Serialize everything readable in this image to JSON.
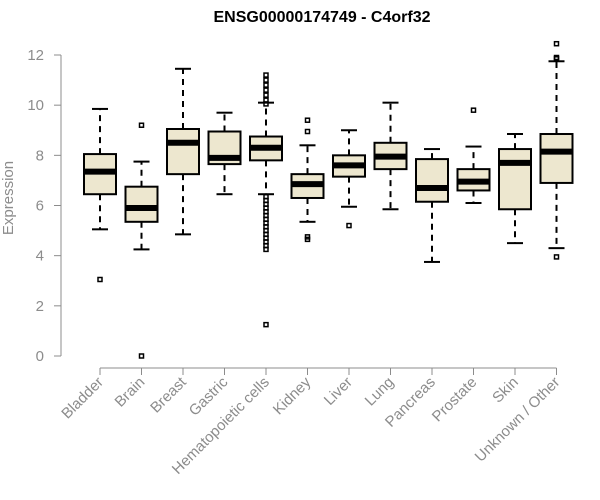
{
  "chart_data": {
    "type": "boxplot",
    "title": "ENSG00000174749 - C4orf32",
    "xlabel": "",
    "ylabel": "Expression",
    "ylim": [
      0,
      12.4
    ],
    "yticks": [
      0,
      2,
      4,
      6,
      8,
      10,
      12
    ],
    "grid": false,
    "colors": {
      "box_fill": "#ede7cf",
      "box_stroke": "#000000",
      "axis": "#8c8c8c"
    },
    "categories": [
      "Bladder",
      "Brain",
      "Breast",
      "Gastric",
      "Hematopoietic cells",
      "Kidney",
      "Liver",
      "Lung",
      "Pancreas",
      "Prostate",
      "Skin",
      "Unknown / Other"
    ],
    "boxes": [
      {
        "category": "Bladder",
        "min": 5.05,
        "q1": 6.45,
        "median": 7.35,
        "q3": 8.05,
        "max": 9.85,
        "outliers": [
          3.05
        ]
      },
      {
        "category": "Brain",
        "min": 4.25,
        "q1": 5.35,
        "median": 5.9,
        "q3": 6.75,
        "max": 7.75,
        "outliers": [
          9.2,
          0.0
        ]
      },
      {
        "category": "Breast",
        "min": 4.85,
        "q1": 7.25,
        "median": 8.5,
        "q3": 9.05,
        "max": 11.45,
        "outliers": []
      },
      {
        "category": "Gastric",
        "min": 6.45,
        "q1": 7.65,
        "median": 7.9,
        "q3": 8.95,
        "max": 9.7,
        "outliers": []
      },
      {
        "category": "Hematopoietic cells",
        "min": 6.45,
        "q1": 7.8,
        "median": 8.3,
        "q3": 8.75,
        "max": 10.1,
        "outliers": [
          11.2,
          11.0,
          10.8,
          10.6,
          10.4,
          10.2,
          10.05,
          6.35,
          6.2,
          6.05,
          5.9,
          5.75,
          5.6,
          5.45,
          5.3,
          5.15,
          5.0,
          4.85,
          4.7,
          4.55,
          4.4,
          4.25,
          1.25
        ]
      },
      {
        "category": "Kidney",
        "min": 5.35,
        "q1": 6.3,
        "median": 6.85,
        "q3": 7.25,
        "max": 8.4,
        "outliers": [
          9.4,
          8.95,
          4.75,
          4.65
        ]
      },
      {
        "category": "Liver",
        "min": 5.95,
        "q1": 7.15,
        "median": 7.6,
        "q3": 8.0,
        "max": 9.0,
        "outliers": [
          5.2
        ]
      },
      {
        "category": "Lung",
        "min": 5.85,
        "q1": 7.45,
        "median": 7.95,
        "q3": 8.5,
        "max": 10.1,
        "outliers": []
      },
      {
        "category": "Pancreas",
        "min": 3.75,
        "q1": 6.15,
        "median": 6.7,
        "q3": 7.85,
        "max": 8.25,
        "outliers": []
      },
      {
        "category": "Prostate",
        "min": 6.1,
        "q1": 6.6,
        "median": 6.95,
        "q3": 7.45,
        "max": 8.35,
        "outliers": [
          9.8
        ]
      },
      {
        "category": "Skin",
        "min": 4.5,
        "q1": 5.85,
        "median": 7.7,
        "q3": 8.25,
        "max": 8.85,
        "outliers": []
      },
      {
        "category": "Unknown / Other",
        "min": 4.3,
        "q1": 6.9,
        "median": 8.15,
        "q3": 8.85,
        "max": 11.75,
        "outliers": [
          12.45,
          11.9,
          11.85,
          3.95
        ]
      }
    ]
  }
}
